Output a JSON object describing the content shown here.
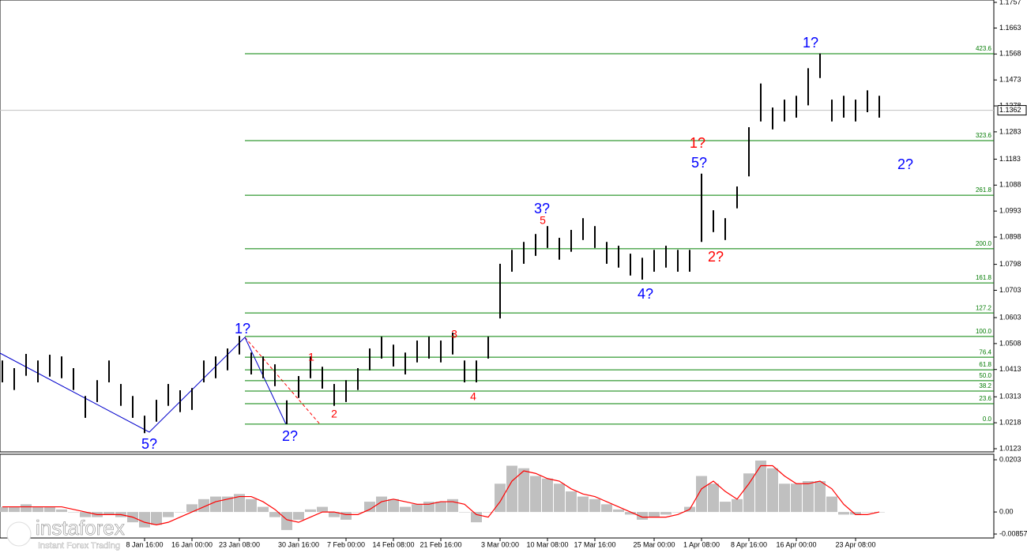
{
  "chart_data": {
    "type": "range-bar",
    "categories": [
      null,
      null,
      null,
      null,
      null,
      null,
      null,
      null,
      null,
      null,
      null,
      null,
      "8 Jan 16:00",
      null,
      null,
      null,
      "16 Jan 00:00",
      null,
      null,
      null,
      "23 Jan 08:00",
      null,
      null,
      null,
      null,
      "30 Jan 16:00",
      null,
      null,
      null,
      "7 Feb 00:00",
      null,
      null,
      null,
      "14 Feb 08:00",
      null,
      null,
      null,
      "21 Feb 16:00",
      null,
      null,
      null,
      null,
      "3 Mar 00:00",
      null,
      null,
      null,
      "10 Mar 08:00",
      null,
      null,
      null,
      "17 Mar 16:00",
      null,
      null,
      null,
      null,
      "25 Mar 00:00",
      null,
      null,
      null,
      "1 Apr 08:00",
      null,
      null,
      null,
      "8 Apr 16:00",
      null,
      null,
      null,
      "16 Apr 00:00",
      null,
      null,
      null,
      null,
      "23 Apr 08:00",
      null,
      null
    ],
    "high": [
      1.0446,
      1.0418,
      1.047,
      1.0446,
      1.0467,
      1.0461,
      1.0418,
      1.0316,
      1.0374,
      1.0446,
      1.036,
      1.0316,
      1.0244,
      1.0302,
      1.036,
      1.0337,
      1.0345,
      1.0446,
      1.0461,
      1.049,
      1.0536,
      1.0475,
      1.0461,
      1.0432,
      1.03,
      1.0389,
      1.0461,
      1.0423,
      1.036,
      1.0374,
      1.0418,
      1.049,
      1.0533,
      1.0504,
      1.0475,
      1.0519,
      1.0533,
      1.0519,
      1.0548,
      1.0446,
      1.0446,
      1.0533,
      1.08,
      1.0851,
      1.088,
      1.0909,
      1.0938,
      1.0895,
      1.0924,
      1.0967,
      1.0938,
      1.088,
      1.0866,
      1.0837,
      1.0822,
      1.0851,
      1.0866,
      1.0851,
      1.0851,
      1.113,
      1.0996,
      1.0967,
      1.1083,
      1.13,
      1.146,
      1.1372,
      1.1401,
      1.1415,
      1.1516,
      1.157,
      1.1401,
      1.1415,
      1.1401,
      1.1435,
      1.1415
    ],
    "low": [
      1.0366,
      1.0338,
      1.039,
      1.0366,
      1.0387,
      1.0381,
      1.0338,
      1.0236,
      1.0294,
      1.0366,
      1.028,
      1.0236,
      1.018,
      1.0222,
      1.028,
      1.0257,
      1.0265,
      1.0366,
      1.0381,
      1.041,
      1.0468,
      1.0395,
      1.0381,
      1.0352,
      1.0213,
      1.0309,
      1.0381,
      1.0343,
      1.028,
      1.0294,
      1.0338,
      1.041,
      1.0453,
      1.0424,
      1.0395,
      1.0439,
      1.0453,
      1.0439,
      1.0468,
      1.0366,
      1.0366,
      1.0453,
      1.06,
      1.0771,
      1.08,
      1.0829,
      1.0858,
      1.0815,
      1.0844,
      1.0887,
      1.0858,
      1.08,
      1.0786,
      1.0757,
      1.0742,
      1.0771,
      1.0786,
      1.0771,
      1.0771,
      1.088,
      1.0916,
      1.0887,
      1.1003,
      1.112,
      1.1321,
      1.1292,
      1.1321,
      1.1335,
      1.138,
      1.148,
      1.1321,
      1.1335,
      1.1321,
      1.1355,
      1.1335
    ],
    "color": "#000000",
    "ylim": [
      1.0123,
      1.1757
    ],
    "yticks": [
      1.1757,
      1.1663,
      1.1568,
      1.1473,
      1.1378,
      1.1283,
      1.1183,
      1.1088,
      1.0993,
      1.0898,
      1.0798,
      1.0703,
      1.0603,
      1.0508,
      1.0413,
      1.0313,
      1.0218,
      1.0123
    ],
    "current_price": 1.1362,
    "fib_levels": [
      {
        "label": "423.6",
        "price": 1.1569
      },
      {
        "label": "323.6",
        "price": 1.1251
      },
      {
        "label": "261.8",
        "price": 1.1051
      },
      {
        "label": "200.0",
        "price": 1.0855
      },
      {
        "label": "161.8",
        "price": 1.073
      },
      {
        "label": "127.2",
        "price": 1.062
      },
      {
        "label": "100.0",
        "price": 1.0534
      },
      {
        "label": "76.4",
        "price": 1.0458
      },
      {
        "label": "61.8",
        "price": 1.0412
      },
      {
        "label": "50.0",
        "price": 1.0372
      },
      {
        "label": "38.2",
        "price": 1.0334
      },
      {
        "label": "23.6",
        "price": 1.0288
      },
      {
        "label": "0.0",
        "price": 1.0213
      }
    ],
    "annotations": [
      {
        "text": "1?",
        "color": "#0000ff"
      },
      {
        "text": "5?",
        "color": "#0000ff"
      },
      {
        "text": "2?",
        "color": "#0000ff"
      },
      {
        "text": "1",
        "color": "#ff0000"
      },
      {
        "text": "2",
        "color": "#ff0000"
      },
      {
        "text": "3",
        "color": "#ff0000"
      },
      {
        "text": "4",
        "color": "#ff0000"
      },
      {
        "text": "5",
        "color": "#ff0000"
      },
      {
        "text": "3?",
        "color": "#0000ff"
      },
      {
        "text": "4?",
        "color": "#0000ff"
      },
      {
        "text": "5?",
        "color": "#0000ff"
      },
      {
        "text": "1?",
        "color": "#ff0000"
      },
      {
        "text": "2?",
        "color": "#ff0000"
      },
      {
        "text": "1?",
        "color": "#0000ff"
      },
      {
        "text": "2?",
        "color": "#0000ff"
      }
    ],
    "histogram": [
      0.002,
      0.002,
      0.003,
      0.002,
      0.002,
      0.001,
      0.0,
      -0.002,
      -0.002,
      -0.001,
      -0.002,
      -0.004,
      -0.006,
      -0.005,
      -0.002,
      0.0,
      0.003,
      0.005,
      0.006,
      0.006,
      0.007,
      0.005,
      0.002,
      -0.002,
      -0.007,
      -0.003,
      0.001,
      0.002,
      -0.002,
      -0.003,
      0.0,
      0.004,
      0.006,
      0.005,
      0.002,
      0.003,
      0.004,
      0.004,
      0.005,
      0.0,
      -0.004,
      0.0,
      0.011,
      0.018,
      0.017,
      0.014,
      0.013,
      0.011,
      0.008,
      0.006,
      0.005,
      0.003,
      0.001,
      -0.001,
      -0.003,
      -0.002,
      -0.001,
      0.0,
      0.002,
      0.014,
      0.011,
      0.004,
      0.005,
      0.015,
      0.02,
      0.017,
      0.011,
      0.011,
      0.012,
      0.012,
      0.006,
      -0.001,
      -0.001,
      0.0,
      0.0
    ],
    "histogram_color": "#c0c0c0",
    "signal": [
      0.002,
      0.002,
      0.002,
      0.002,
      0.002,
      0.002,
      0.001,
      0.0,
      -0.001,
      -0.001,
      -0.001,
      -0.002,
      -0.004,
      -0.005,
      -0.004,
      -0.002,
      0.0,
      0.002,
      0.004,
      0.005,
      0.006,
      0.006,
      0.004,
      0.001,
      -0.003,
      -0.004,
      -0.002,
      0.0,
      0.0,
      -0.001,
      -0.001,
      0.001,
      0.004,
      0.005,
      0.004,
      0.003,
      0.003,
      0.004,
      0.004,
      0.003,
      -0.001,
      -0.002,
      0.004,
      0.012,
      0.016,
      0.015,
      0.013,
      0.012,
      0.009,
      0.007,
      0.006,
      0.004,
      0.002,
      0.0,
      -0.002,
      -0.002,
      -0.002,
      -0.001,
      0.001,
      0.009,
      0.012,
      0.008,
      0.005,
      0.011,
      0.018,
      0.018,
      0.014,
      0.011,
      0.011,
      0.012,
      0.009,
      0.003,
      -0.001,
      -0.001,
      0.0
    ],
    "signal_color": "#ff0000",
    "y2lim": [
      -0.00857,
      0.0203
    ],
    "y2ticks": [
      0.0203,
      {
        "value": 0,
        "label": "0.00"
      },
      -0.00857
    ],
    "watermark": "instaforex",
    "watermark_subtitle": "Instant Forex Trading"
  }
}
